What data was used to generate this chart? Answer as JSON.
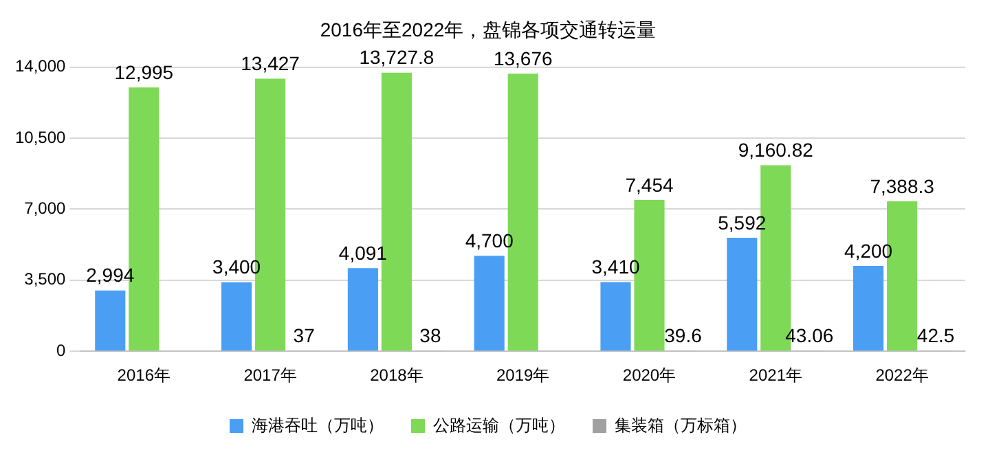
{
  "chart_data": {
    "type": "bar",
    "title": "2016年至2022年，盘锦各项交通转运量",
    "categories": [
      "2016年",
      "2017年",
      "2018年",
      "2019年",
      "2020年",
      "2021年",
      "2022年"
    ],
    "series": [
      {
        "name": "海港吞吐（万吨）",
        "color": "#4a9ff5",
        "values": [
          2994,
          3400,
          4091,
          4700,
          3410,
          5592,
          4200
        ],
        "value_labels": [
          "2,994",
          "3,400",
          "4,091",
          "4,700",
          "3,410",
          "5,592",
          "4,200"
        ]
      },
      {
        "name": "公路运输（万吨）",
        "color": "#7ed957",
        "values": [
          12995,
          13427,
          13727.8,
          13676,
          7454,
          9160.82,
          7388.3
        ],
        "value_labels": [
          "12,995",
          "13,427",
          "13,727.8",
          "13,676",
          "7,454",
          "9,160.82",
          "7,388.3"
        ]
      },
      {
        "name": "集装箱（万标箱）",
        "color": "#a0a0a0",
        "values": [
          null,
          37,
          38,
          null,
          39.6,
          43.06,
          42.5
        ],
        "value_labels": [
          null,
          "37",
          "38",
          null,
          "39.6",
          "43.06",
          "42.5"
        ]
      }
    ],
    "ylim": [
      0,
      14000
    ],
    "yticks": [
      0,
      {
        "value": 3500,
        "label": "3,500"
      },
      {
        "value": 7000,
        "label": "7,000"
      },
      {
        "value": 10500,
        "label": "10,500"
      },
      {
        "value": 14000,
        "label": "14,000"
      }
    ],
    "grid": "y",
    "legend": "bottom"
  }
}
